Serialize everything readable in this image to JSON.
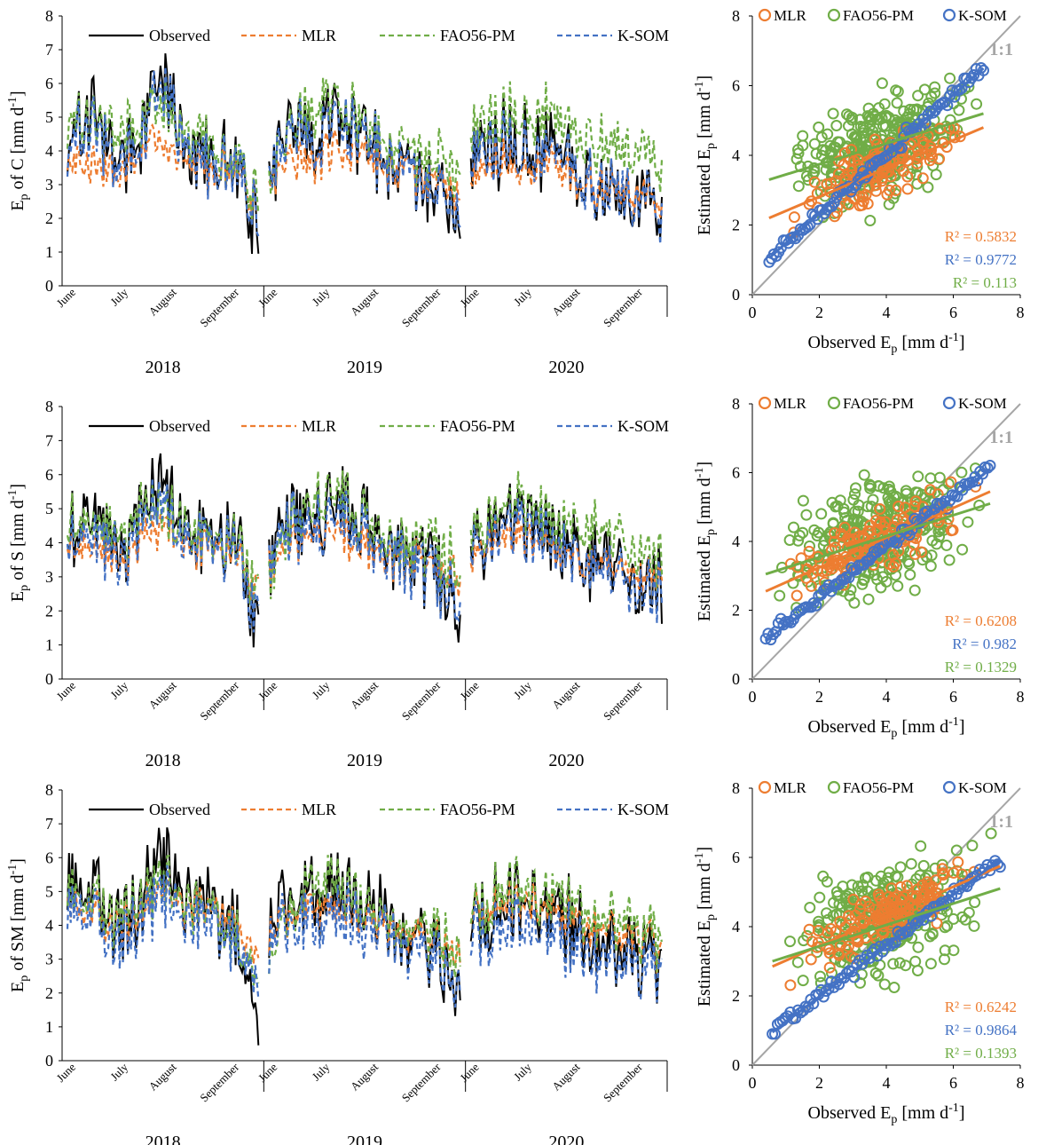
{
  "colors": {
    "observed": "#000000",
    "mlr": "#ED7D31",
    "fao": "#70AD47",
    "ksom": "#4472C4",
    "one_to_one": "#A6A6A6",
    "axis": "#000000"
  },
  "labels": {
    "ts_ylabel_prefix": "E",
    "ts_ylabel_sub": "p",
    "scatter_xlabel_main": "Observed E",
    "scatter_xlabel_sub": "p",
    "scatter_xlabel_unit": " [mm d",
    "scatter_xlabel_sup": "-1",
    "scatter_xlabel_end": "]",
    "scatter_ylabel_main": "Estimated E",
    "scatter_ylabel_sub": "p",
    "scatter_ylabel_unit": " [mm d",
    "scatter_ylabel_sup": "-1",
    "scatter_ylabel_end": "]",
    "one_to_one": "1:1",
    "r2_prefix": "R² = "
  },
  "chart_data": [
    {
      "type": "line",
      "panel": "time-series-C",
      "ylabel_station": " of C [mm d",
      "ylabel_sup": "-1",
      "ylabel_end": "]",
      "ylim": [
        0,
        8
      ],
      "yticks": [
        0,
        1,
        2,
        3,
        4,
        5,
        6,
        7,
        8
      ],
      "years": [
        "2018",
        "2019",
        "2020"
      ],
      "months": [
        "June",
        "July",
        "August",
        "September"
      ],
      "legend": [
        "Observed",
        "MLR",
        "FAO56-PM",
        "K-SOM"
      ],
      "legend_position": "top",
      "seed": 11,
      "series": [
        {
          "name": "Observed",
          "key": "observed",
          "style": "solid",
          "anchors": [
            [
              4.1,
              5.5,
              3.6,
              4.4,
              6.4,
              4.2,
              3.8,
              3.9,
              1.6
            ],
            [
              3.4,
              4.9,
              4.4,
              5.3,
              4.5,
              3.8,
              3.3,
              3.0,
              2.0
            ],
            [
              3.8,
              4.2,
              4.5,
              4.1,
              3.9,
              3.4,
              3.0,
              2.7,
              2.4
            ]
          ]
        },
        {
          "name": "MLR",
          "key": "mlr",
          "style": "dashed",
          "anchors": [
            [
              3.6,
              3.6,
              3.2,
              3.9,
              4.3,
              3.8,
              3.6,
              3.5,
              2.3
            ],
            [
              3.0,
              3.8,
              3.8,
              4.1,
              3.9,
              3.5,
              3.3,
              3.2,
              2.6
            ],
            [
              3.2,
              3.6,
              3.7,
              3.6,
              3.4,
              3.1,
              2.9,
              2.7,
              2.5
            ]
          ]
        },
        {
          "name": "FAO56-PM",
          "key": "fao",
          "style": "dashed",
          "anchors": [
            [
              4.8,
              5.0,
              4.4,
              4.9,
              5.3,
              4.6,
              4.3,
              3.9,
              2.6
            ],
            [
              3.0,
              4.8,
              5.4,
              5.6,
              4.8,
              4.2,
              4.0,
              3.8,
              3.4
            ],
            [
              4.4,
              5.0,
              5.4,
              5.1,
              4.9,
              4.6,
              4.3,
              4.0,
              3.6
            ]
          ]
        },
        {
          "name": "K-SOM",
          "key": "ksom",
          "style": "dashed",
          "anchors": [
            [
              4.0,
              5.1,
              3.6,
              4.3,
              6.0,
              4.1,
              3.7,
              3.8,
              1.8
            ],
            [
              3.3,
              4.7,
              4.3,
              5.1,
              4.4,
              3.7,
              3.3,
              3.0,
              2.1
            ],
            [
              3.7,
              4.1,
              4.4,
              4.0,
              3.8,
              3.3,
              3.0,
              2.7,
              2.4
            ]
          ]
        }
      ]
    },
    {
      "type": "scatter",
      "panel": "scatter-C",
      "xlim": [
        0,
        8
      ],
      "ylim": [
        0,
        8
      ],
      "xticks": [
        0,
        2,
        4,
        6,
        8
      ],
      "yticks": [
        0,
        2,
        4,
        6,
        8
      ],
      "legend": [
        "MLR",
        "FAO56-PM",
        "K-SOM"
      ],
      "legend_position": "top",
      "seed": 21,
      "series": [
        {
          "name": "MLR",
          "key": "mlr",
          "fit": [
            0.5,
            2.2,
            6.9,
            4.8
          ],
          "r2": "0.5832"
        },
        {
          "name": "K-SOM",
          "key": "ksom",
          "fit": [
            0.5,
            1.05,
            6.9,
            6.5
          ],
          "r2": "0.9772"
        },
        {
          "name": "FAO56-PM",
          "key": "fao",
          "fit": [
            0.5,
            3.3,
            6.9,
            5.2
          ],
          "r2": "0.113"
        }
      ],
      "points": {
        "mlr": {
          "n": 140,
          "xrange": [
            0.5,
            6.9
          ],
          "slope": 0.41,
          "intercept": 2.0,
          "noise": 0.75
        },
        "fao": {
          "n": 300,
          "xrange": [
            0.5,
            6.9
          ],
          "slope": 0.28,
          "intercept": 3.2,
          "noise": 1.25
        },
        "ksom": {
          "n": 90,
          "xrange": [
            0.5,
            6.9
          ],
          "slope": 0.86,
          "intercept": 0.6,
          "noise": 0.15
        }
      }
    },
    {
      "type": "line",
      "panel": "time-series-S",
      "ylabel_station": " of S [mm d",
      "ylabel_sup": "-1",
      "ylabel_end": "]",
      "ylim": [
        0,
        8
      ],
      "yticks": [
        0,
        1,
        2,
        3,
        4,
        5,
        6,
        7,
        8
      ],
      "years": [
        "2018",
        "2019",
        "2020"
      ],
      "months": [
        "June",
        "July",
        "August",
        "September"
      ],
      "legend": [
        "Observed",
        "MLR",
        "FAO56-PM",
        "K-SOM"
      ],
      "legend_position": "top",
      "seed": 31,
      "series": [
        {
          "name": "Observed",
          "key": "observed",
          "style": "solid",
          "anchors": [
            [
              4.6,
              5.3,
              3.8,
              4.6,
              6.2,
              4.3,
              4.2,
              4.1,
              1.6
            ],
            [
              3.4,
              5.1,
              4.8,
              5.4,
              4.6,
              4.0,
              3.6,
              3.2,
              2.2
            ],
            [
              3.9,
              4.5,
              4.9,
              4.6,
              4.2,
              3.6,
              3.3,
              3.0,
              2.7
            ]
          ]
        },
        {
          "name": "MLR",
          "key": "mlr",
          "style": "dashed",
          "anchors": [
            [
              4.2,
              4.0,
              3.4,
              4.0,
              4.6,
              4.0,
              3.9,
              3.8,
              2.6
            ],
            [
              3.2,
              4.2,
              4.3,
              4.3,
              4.0,
              3.7,
              3.5,
              3.4,
              3.1
            ],
            [
              3.6,
              4.1,
              4.3,
              4.1,
              3.8,
              3.5,
              3.3,
              3.2,
              3.0
            ]
          ]
        },
        {
          "name": "FAO56-PM",
          "key": "fao",
          "style": "dashed",
          "anchors": [
            [
              4.7,
              4.9,
              4.3,
              4.8,
              5.2,
              4.5,
              4.2,
              3.9,
              2.6
            ],
            [
              2.9,
              4.7,
              5.4,
              5.5,
              4.7,
              4.1,
              4.0,
              3.8,
              3.4
            ],
            [
              4.2,
              4.9,
              5.3,
              5.0,
              4.8,
              4.5,
              4.2,
              3.9,
              3.5
            ]
          ]
        },
        {
          "name": "K-SOM",
          "key": "ksom",
          "style": "dashed",
          "anchors": [
            [
              4.3,
              4.8,
              3.6,
              4.3,
              5.5,
              4.1,
              4.0,
              3.9,
              1.8
            ],
            [
              3.3,
              4.6,
              4.4,
              4.9,
              4.3,
              3.8,
              3.4,
              3.1,
              2.4
            ],
            [
              3.7,
              4.2,
              4.6,
              4.3,
              4.0,
              3.4,
              3.1,
              2.9,
              2.6
            ]
          ]
        }
      ]
    },
    {
      "type": "scatter",
      "panel": "scatter-S",
      "xlim": [
        0,
        8
      ],
      "ylim": [
        0,
        8
      ],
      "xticks": [
        0,
        2,
        4,
        6,
        8
      ],
      "yticks": [
        0,
        2,
        4,
        6,
        8
      ],
      "legend": [
        "MLR",
        "FAO56-PM",
        "K-SOM"
      ],
      "legend_position": "top",
      "seed": 41,
      "series": [
        {
          "name": "MLR",
          "key": "mlr",
          "fit": [
            0.4,
            2.55,
            7.1,
            5.45
          ],
          "r2": "0.6208"
        },
        {
          "name": "K-SOM",
          "key": "ksom",
          "fit": [
            0.4,
            1.1,
            7.1,
            6.1
          ],
          "r2": "0.982"
        },
        {
          "name": "FAO56-PM",
          "key": "fao",
          "fit": [
            0.4,
            3.05,
            7.1,
            5.1
          ],
          "r2": "0.1329"
        }
      ],
      "points": {
        "mlr": {
          "n": 140,
          "xrange": [
            0.4,
            7.1
          ],
          "slope": 0.43,
          "intercept": 2.4,
          "noise": 0.7
        },
        "fao": {
          "n": 300,
          "xrange": [
            0.4,
            7.1
          ],
          "slope": 0.3,
          "intercept": 3.0,
          "noise": 1.25
        },
        "ksom": {
          "n": 90,
          "xrange": [
            0.4,
            7.1
          ],
          "slope": 0.74,
          "intercept": 0.9,
          "noise": 0.15
        }
      }
    },
    {
      "type": "line",
      "panel": "time-series-SM",
      "ylabel_station": " of SM [mm d",
      "ylabel_sup": "-1",
      "ylabel_end": "]",
      "ylim": [
        0,
        8
      ],
      "yticks": [
        0,
        1,
        2,
        3,
        4,
        5,
        6,
        7,
        8
      ],
      "years": [
        "2018",
        "2019",
        "2020"
      ],
      "months": [
        "June",
        "July",
        "August",
        "September"
      ],
      "legend": [
        "Observed",
        "MLR",
        "FAO56-PM",
        "K-SOM"
      ],
      "legend_position": "top",
      "seed": 51,
      "series": [
        {
          "name": "Observed",
          "key": "observed",
          "style": "solid",
          "anchors": [
            [
              5.0,
              5.4,
              4.0,
              4.8,
              6.3,
              4.6,
              4.5,
              4.3,
              1.5
            ],
            [
              3.6,
              5.2,
              5.0,
              5.5,
              4.7,
              4.1,
              3.7,
              3.3,
              2.4
            ],
            [
              4.1,
              4.6,
              5.0,
              4.7,
              4.3,
              3.7,
              3.4,
              3.1,
              2.8
            ]
          ]
        },
        {
          "name": "MLR",
          "key": "mlr",
          "style": "dashed",
          "anchors": [
            [
              4.7,
              4.6,
              3.9,
              4.5,
              5.1,
              4.5,
              4.4,
              4.3,
              3.2
            ],
            [
              3.6,
              4.6,
              4.6,
              4.7,
              4.4,
              4.0,
              3.8,
              3.6,
              3.3
            ],
            [
              4.3,
              4.7,
              4.8,
              4.6,
              4.3,
              4.0,
              3.8,
              3.6,
              3.3
            ]
          ]
        },
        {
          "name": "FAO56-PM",
          "key": "fao",
          "style": "dashed",
          "anchors": [
            [
              4.8,
              4.9,
              4.3,
              4.8,
              5.3,
              4.6,
              4.3,
              4.0,
              2.6
            ],
            [
              2.9,
              4.7,
              5.4,
              5.5,
              4.7,
              4.1,
              4.0,
              3.8,
              3.4
            ],
            [
              4.3,
              5.0,
              5.3,
              5.0,
              4.8,
              4.5,
              4.2,
              3.9,
              3.5
            ]
          ]
        },
        {
          "name": "K-SOM",
          "key": "ksom",
          "style": "dashed",
          "anchors": [
            [
              4.4,
              4.6,
              3.5,
              4.2,
              5.1,
              4.0,
              3.9,
              3.8,
              2.6
            ],
            [
              3.4,
              4.4,
              4.3,
              4.6,
              4.1,
              3.7,
              3.3,
              3.0,
              2.5
            ],
            [
              3.6,
              4.0,
              4.2,
              4.0,
              3.7,
              3.3,
              3.0,
              2.8,
              2.6
            ]
          ]
        }
      ]
    },
    {
      "type": "scatter",
      "panel": "scatter-SM",
      "xlim": [
        0,
        8
      ],
      "ylim": [
        0,
        8
      ],
      "xticks": [
        0,
        2,
        4,
        6,
        8
      ],
      "yticks": [
        0,
        2,
        4,
        6,
        8
      ],
      "legend": [
        "MLR",
        "FAO56-PM",
        "K-SOM"
      ],
      "legend_position": "top",
      "seed": 61,
      "series": [
        {
          "name": "MLR",
          "key": "mlr",
          "fit": [
            0.6,
            2.85,
            7.4,
            5.75
          ],
          "r2": "0.6242"
        },
        {
          "name": "K-SOM",
          "key": "ksom",
          "fit": [
            0.6,
            0.95,
            7.4,
            5.95
          ],
          "r2": "0.9864"
        },
        {
          "name": "FAO56-PM",
          "key": "fao",
          "fit": [
            0.6,
            3.0,
            7.4,
            5.1
          ],
          "r2": "0.1393"
        }
      ],
      "points": {
        "mlr": {
          "n": 140,
          "xrange": [
            0.6,
            7.4
          ],
          "slope": 0.43,
          "intercept": 2.6,
          "noise": 0.65
        },
        "fao": {
          "n": 300,
          "xrange": [
            0.6,
            7.4
          ],
          "slope": 0.3,
          "intercept": 3.0,
          "noise": 1.25
        },
        "ksom": {
          "n": 90,
          "xrange": [
            0.6,
            7.4
          ],
          "slope": 0.74,
          "intercept": 0.5,
          "noise": 0.15
        }
      }
    }
  ]
}
